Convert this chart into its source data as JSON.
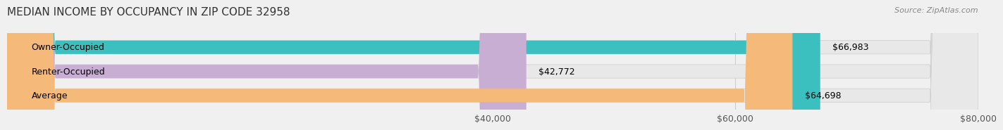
{
  "title": "MEDIAN INCOME BY OCCUPANCY IN ZIP CODE 32958",
  "source": "Source: ZipAtlas.com",
  "categories": [
    "Owner-Occupied",
    "Renter-Occupied",
    "Average"
  ],
  "values": [
    66983,
    42772,
    64698
  ],
  "bar_colors": [
    "#3bbfbf",
    "#c9aed4",
    "#f5b97a"
  ],
  "bar_labels": [
    "$66,983",
    "$42,772",
    "$64,698"
  ],
  "xlim": [
    0,
    80000
  ],
  "xticks": [
    40000,
    60000,
    80000
  ],
  "xticklabels": [
    "$40,000",
    "$60,000",
    "$80,000"
  ],
  "background_color": "#f0f0f0",
  "bar_bg_color": "#e8e8e8",
  "title_fontsize": 11,
  "source_fontsize": 8,
  "label_fontsize": 9,
  "tick_fontsize": 9,
  "bar_height": 0.55
}
